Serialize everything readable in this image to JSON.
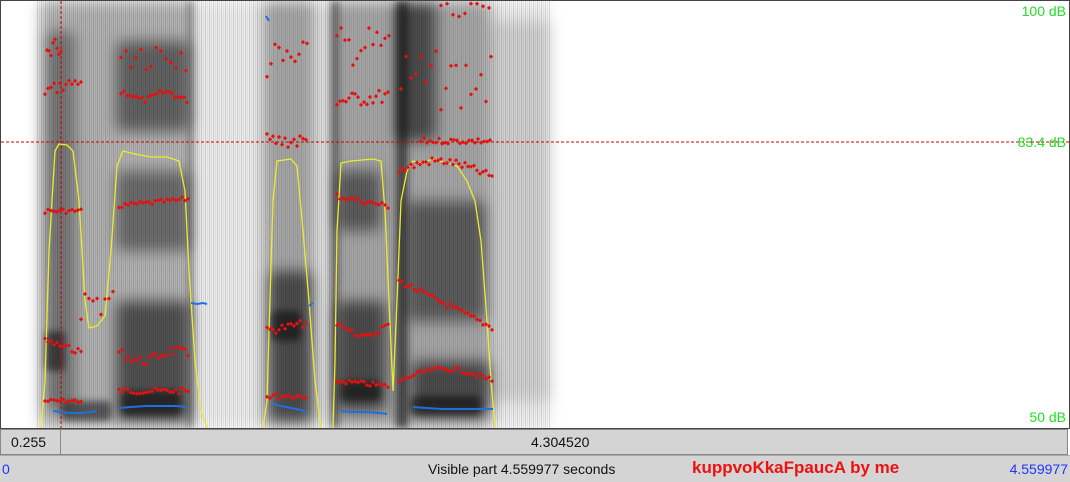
{
  "app": {
    "window": "Praat sound editor"
  },
  "spectrogram": {
    "db_max_label": "100 dB",
    "db_cursor_label": "83.4 dB",
    "db_min_label": "50 dB",
    "colors": {
      "formants": "#e51010",
      "pitch": "#1f6fe0",
      "intensity": "#ecec2a",
      "db_label": "#22dd22",
      "cursor": "#c80000"
    }
  },
  "time_bar": {
    "left_value": "0.255",
    "duration_value": "4.304520"
  },
  "status_bar": {
    "start_time": "0",
    "visible_part": "Visible part 4.559977 seconds",
    "title": "kuppvoKkaFpaucA by me",
    "end_time": "4.559977"
  }
}
